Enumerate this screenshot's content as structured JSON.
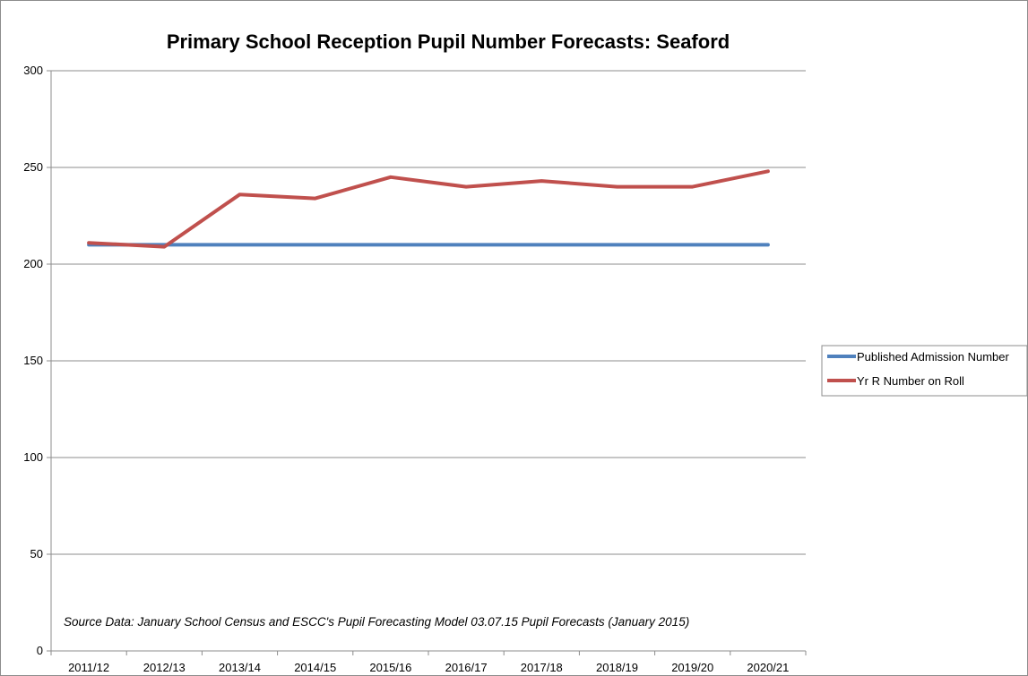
{
  "chart_data": {
    "type": "line",
    "title": "Primary School Reception Pupil Number Forecasts: Seaford",
    "xlabel": "",
    "ylabel": "",
    "ylim": [
      0,
      300
    ],
    "yticks": [
      0,
      50,
      100,
      150,
      200,
      250,
      300
    ],
    "grid": true,
    "legend_position": "right",
    "categories": [
      "2011/12",
      "2012/13",
      "2013/14",
      "2014/15",
      "2015/16",
      "2016/17",
      "2017/18",
      "2018/19",
      "2019/20",
      "2020/21"
    ],
    "series": [
      {
        "name": "Published Admission Number",
        "color": "#4f81bd",
        "values": [
          210,
          210,
          210,
          210,
          210,
          210,
          210,
          210,
          210,
          210
        ]
      },
      {
        "name": "Yr R Number on Roll",
        "color": "#c0504d",
        "values": [
          211,
          209,
          236,
          234,
          245,
          240,
          243,
          240,
          240,
          248
        ]
      }
    ],
    "annotation": "Source Data: January School Census and ESCC's Pupil Forecasting Model 03.07.15 Pupil Forecasts (January 2015)"
  }
}
